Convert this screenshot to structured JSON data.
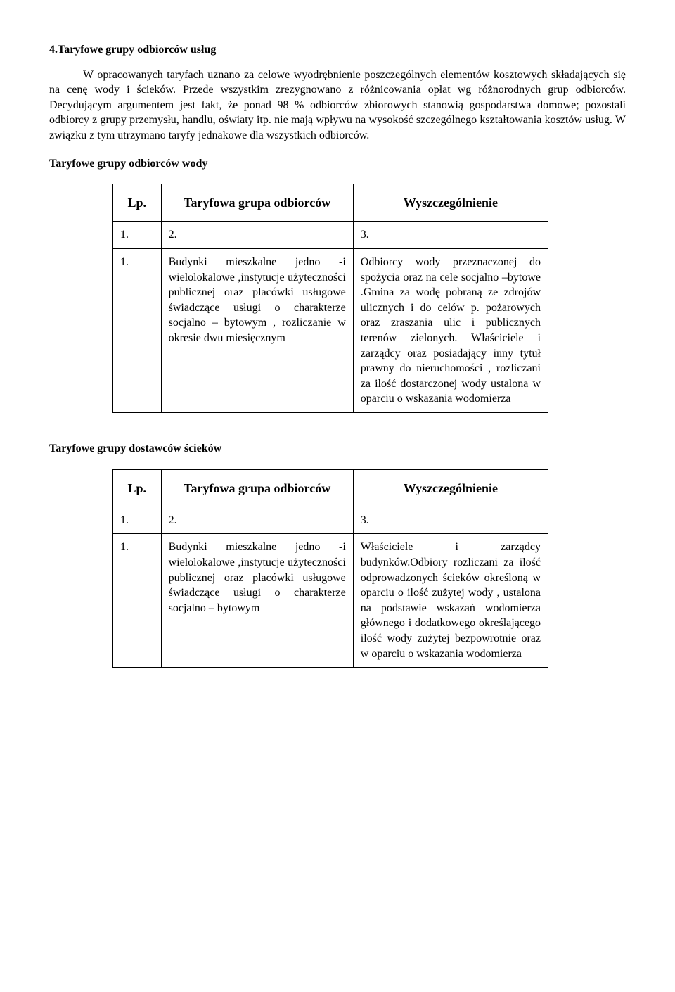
{
  "section4": {
    "title": "4.Taryfowe  grupy odbiorców usług",
    "para": "W opracowanych taryfach uznano za celowe wyodrębnienie poszczególnych elementów kosztowych składających się na cenę wody i ścieków. Przede wszystkim zrezygnowano z różnicowania opłat wg różnorodnych grup odbiorców. Decydującym argumentem jest fakt, że ponad 98 % odbiorców zbiorowych stanowią gospodarstwa domowe; pozostali odbiorcy z grupy przemysłu, handlu, oświaty itp. nie mają wpływu na wysokość szczególnego kształtowania kosztów usług. W związku z tym utrzymano taryfy jednakowe dla wszystkich odbiorców."
  },
  "waterGroups": {
    "heading": "Taryfowe grupy odbiorców wody",
    "headers": {
      "lp": "Lp.",
      "group": "Taryfowa grupa odbiorców",
      "spec": "Wyszczególnienie"
    },
    "numRow": {
      "a": "1.",
      "b": "2.",
      "c": "3."
    },
    "row": {
      "lp": "1.",
      "group": "Budynki mieszkalne jedno -i wielolokalowe ,instytucje użyteczności publicznej oraz placówki usługowe świadczące usługi o charakterze socjalno – bytowym , rozliczanie w okresie dwu miesięcznym",
      "spec": "Odbiorcy wody przeznaczonej do spożycia oraz na cele socjalno –bytowe .Gmina za wodę pobraną ze zdrojów ulicznych i do celów p. pożarowych oraz zraszania ulic i publicznych terenów zielonych. Właściciele i zarządcy oraz posiadający inny tytuł prawny do nieruchomości , rozliczani za ilość dostarczonej wody ustalona w oparciu o wskazania wodomierza"
    }
  },
  "sewageGroups": {
    "heading": "Taryfowe grupy dostawców ścieków",
    "headers": {
      "lp": "Lp.",
      "group": "Taryfowa grupa odbiorców",
      "spec": "Wyszczególnienie"
    },
    "numRow": {
      "a": "1.",
      "b": "2.",
      "c": "3."
    },
    "row": {
      "lp": "1.",
      "group": "Budynki mieszkalne jedno -i wielolokalowe ,instytucje użyteczności publicznej oraz placówki usługowe świadczące usługi o charakterze socjalno – bytowym",
      "spec": "Właściciele i zarządcy budynków.Odbiory rozliczani za ilość odprowadzonych ścieków określoną w oparciu o ilość zużytej wody , ustalona na podstawie wskazań wodomierza głównego i dodatkowego określającego ilość wody zużytej bezpowrotnie oraz w oparciu o wskazania wodomierza"
    }
  }
}
